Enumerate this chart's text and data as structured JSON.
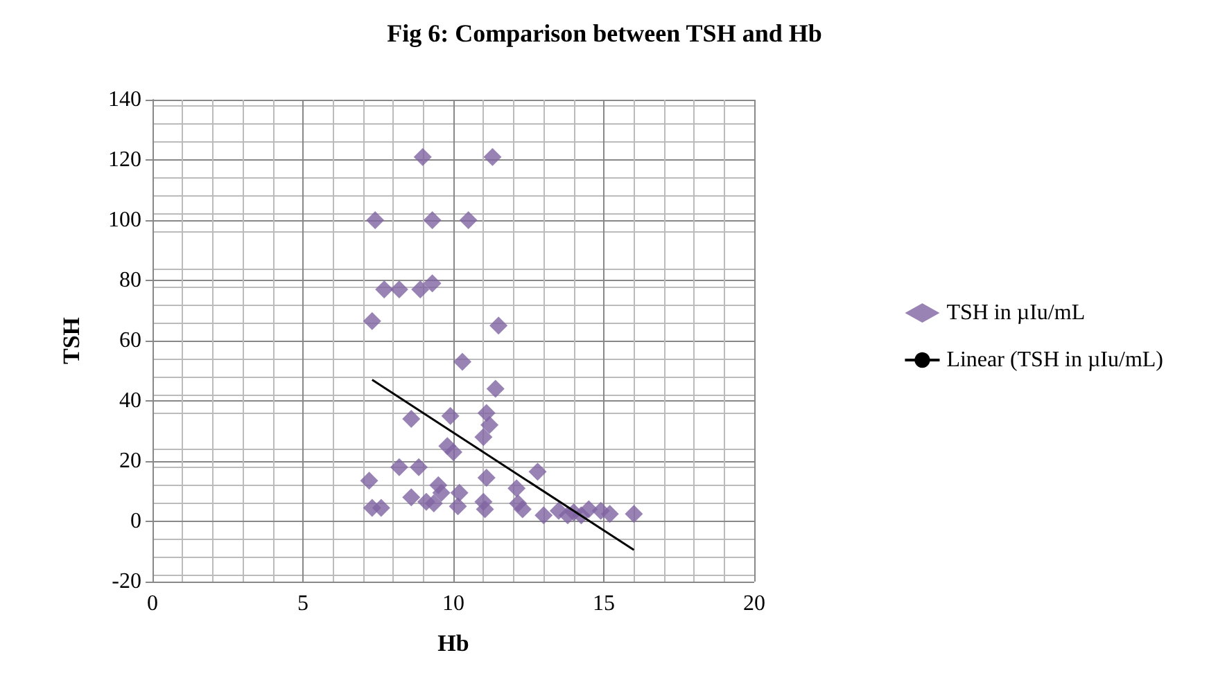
{
  "chart_data": {
    "type": "scatter",
    "title": "Fig 6: Comparison between TSH and Hb",
    "xlabel": "Hb",
    "ylabel": "TSH",
    "xlim": [
      0,
      20
    ],
    "xticks": [
      0,
      5,
      10,
      15,
      20
    ],
    "ylim": [
      -20,
      140
    ],
    "yticks": [
      -20,
      0,
      20,
      40,
      60,
      80,
      100,
      120,
      140
    ],
    "grid": true,
    "legend": "right",
    "marker": "diamond",
    "series": [
      {
        "name": "TSH in µIu/mL",
        "color": "#8064a2",
        "x": [
          8.98,
          11.3,
          7.4,
          9.3,
          10.5,
          7.7,
          8.2,
          8.9,
          9.3,
          7.3,
          11.5,
          10.3,
          11.4,
          8.6,
          9.9,
          11.1,
          11.2,
          11.0,
          9.8,
          10.0,
          7.2,
          8.2,
          8.85,
          9.5,
          9.6,
          8.6,
          9.1,
          9.35,
          10.2,
          10.15,
          7.3,
          7.6,
          11.1,
          11.0,
          11.05,
          12.1,
          12.15,
          12.3,
          12.8,
          12.85,
          13.1,
          13.3,
          13.5,
          13.8,
          14.0,
          14.25,
          14.5,
          14.75,
          14.9,
          15.2,
          16.0,
          13.0
        ],
        "values": [
          121,
          121,
          100,
          100,
          100,
          77,
          77,
          77,
          79,
          66.5,
          65,
          53,
          44,
          34,
          35,
          36,
          32,
          28,
          25,
          23,
          13.5,
          18,
          18,
          12,
          9.5,
          8,
          6.5,
          6,
          9.5,
          5,
          4.5,
          4.5,
          14.5,
          6.5,
          4,
          11,
          6,
          4,
          16.5,
          null,
          null,
          null,
          3.5,
          2,
          3,
          2,
          4,
          null,
          3.5,
          2.5,
          2.5,
          2
        ]
      },
      {
        "name": "Linear (TSH in µIu/mL)",
        "type": "line",
        "color": "#000000",
        "marker": "none",
        "line_style": "solid",
        "x": [
          7.3,
          16.0
        ],
        "values": [
          47,
          -9.5
        ]
      }
    ]
  }
}
